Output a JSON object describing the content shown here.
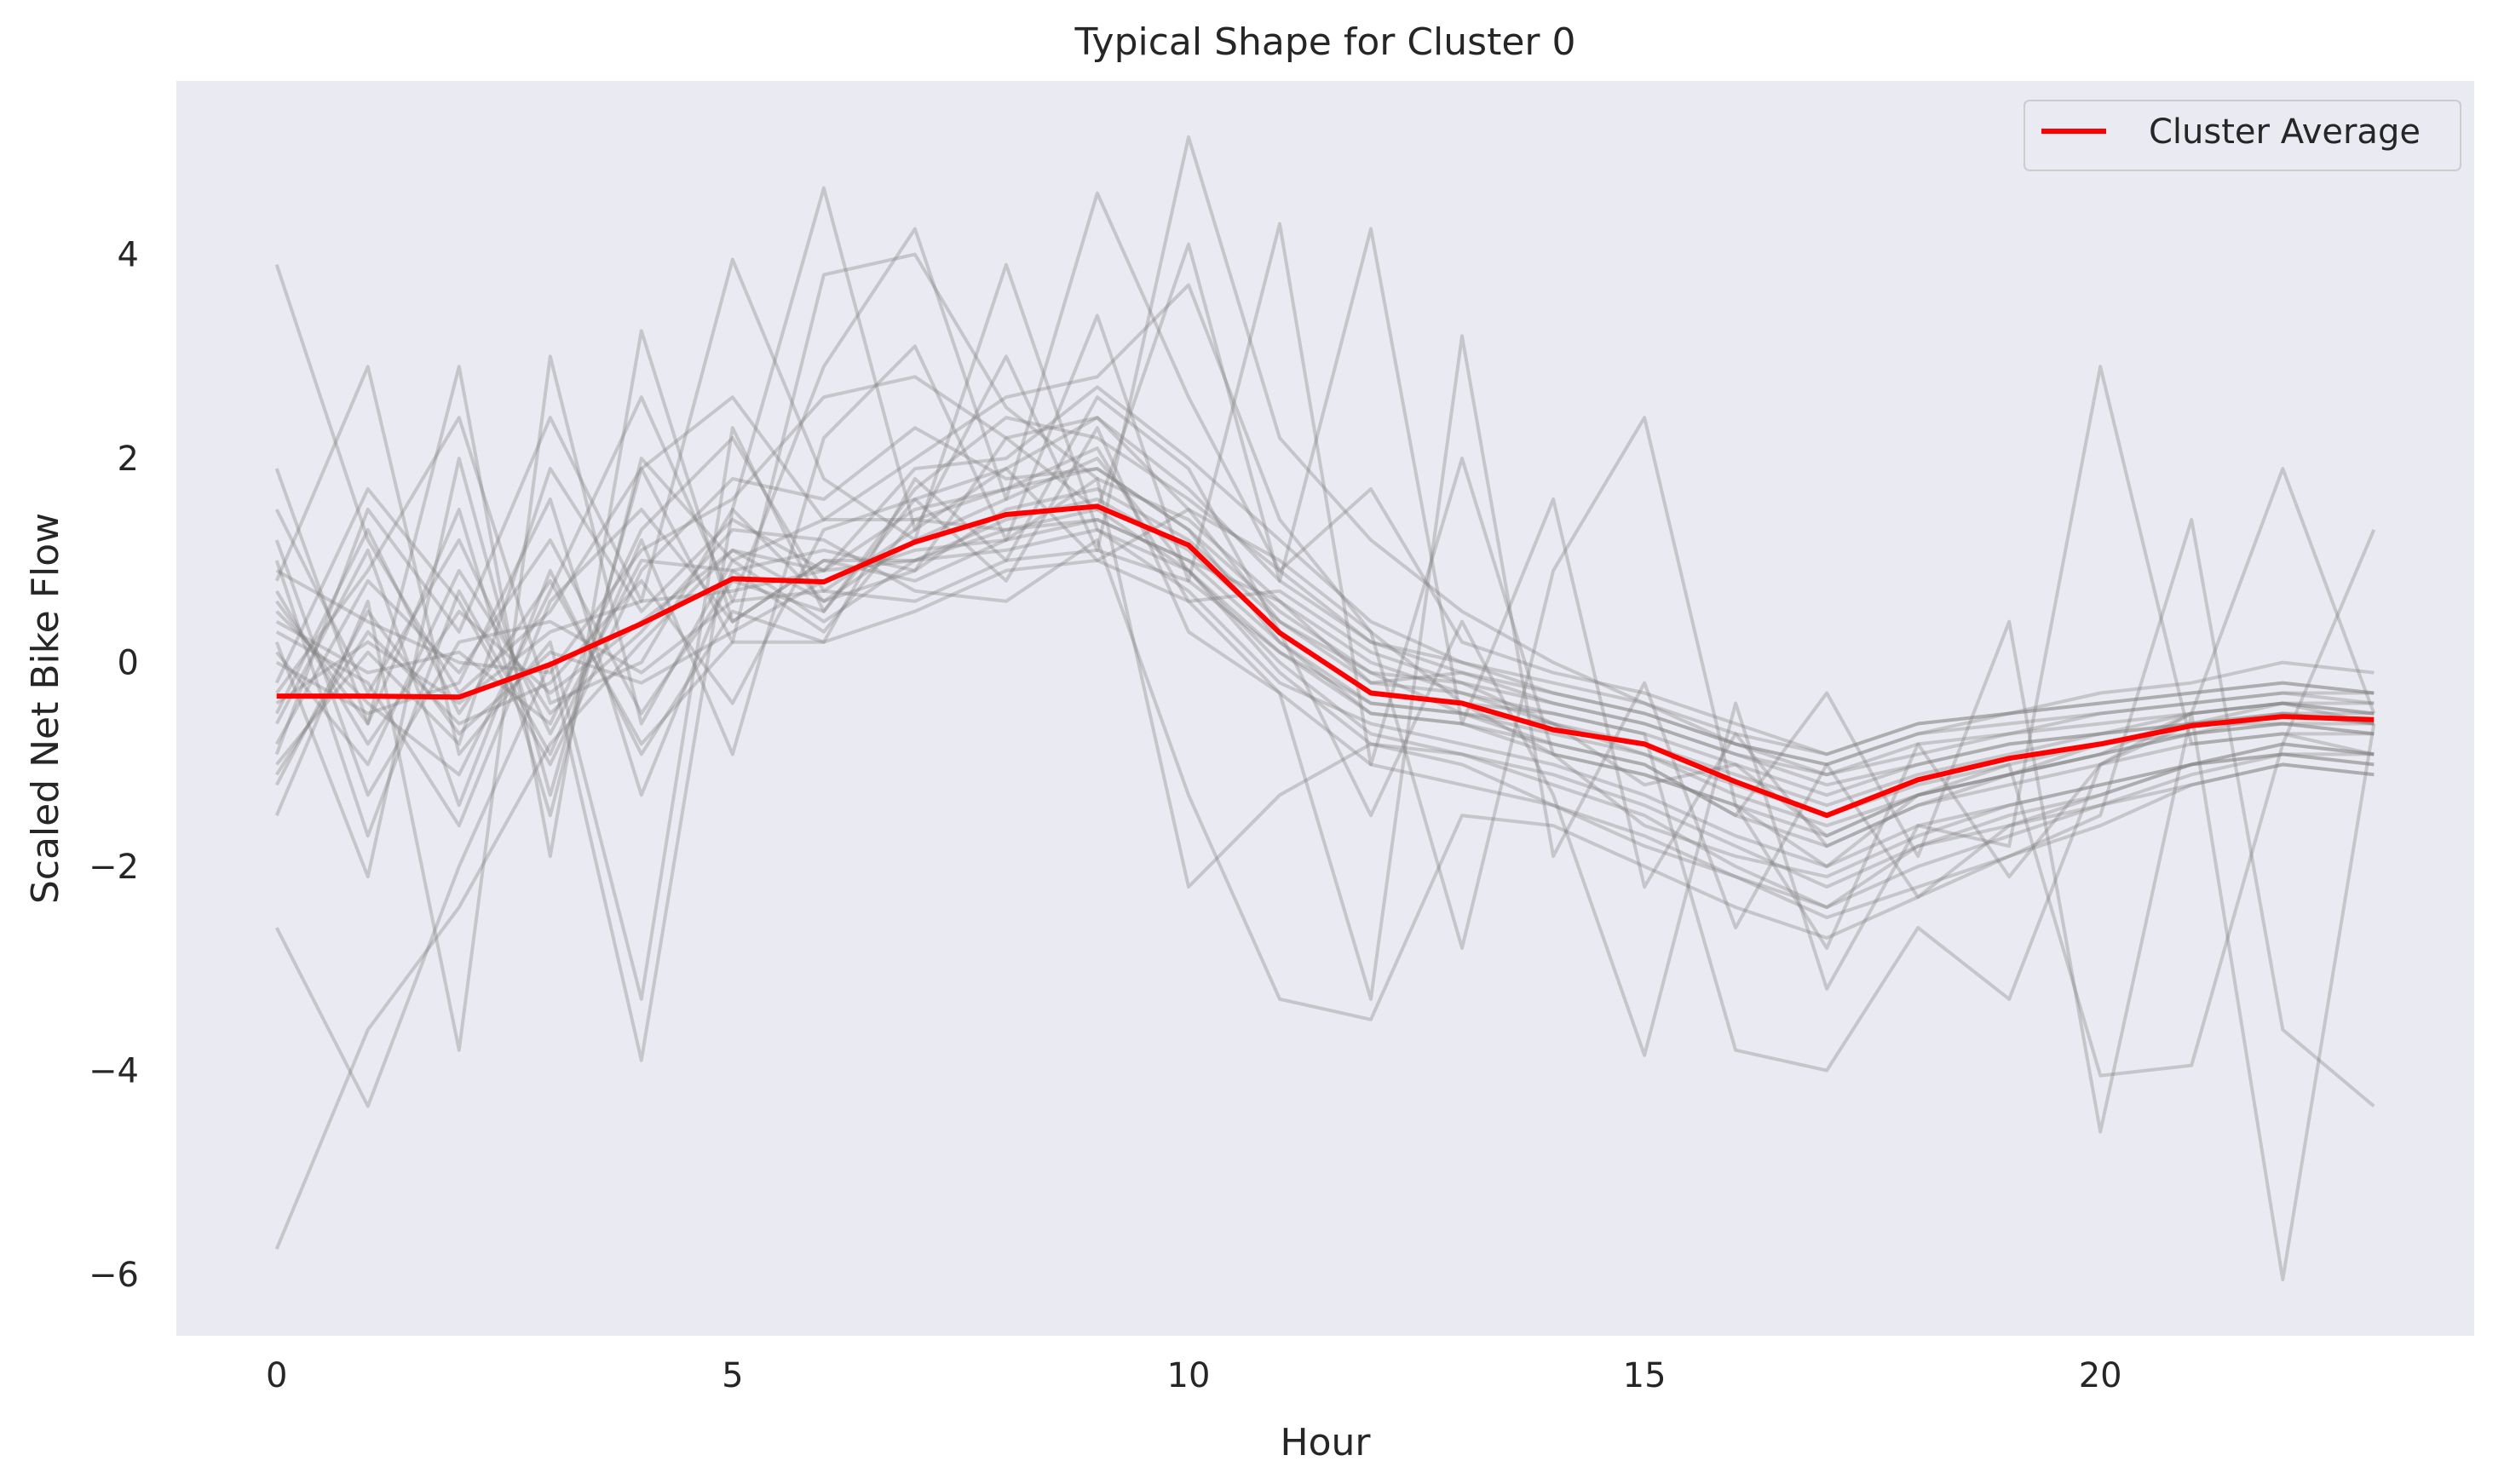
{
  "chart_data": {
    "type": "line",
    "title": "Typical Shape for Cluster 0",
    "xlabel": "Hour",
    "ylabel": "Scaled Net Bike Flow",
    "xlim": [
      -1.1,
      24.1
    ],
    "ylim": [
      -6.6,
      5.7
    ],
    "xticks": [
      0,
      5,
      10,
      15,
      20
    ],
    "yticks": [
      -6,
      -4,
      -2,
      0,
      2,
      4
    ],
    "ytick_labels": [
      "−6",
      "−4",
      "−2",
      "0",
      "2",
      "4"
    ],
    "grid": false,
    "legend": {
      "position": "top-right",
      "entries": [
        "Cluster Average"
      ]
    },
    "colors": {
      "background": "#eaeaf2",
      "average": "#ff0000",
      "members": "#808080"
    },
    "x": [
      0,
      1,
      2,
      3,
      4,
      5,
      6,
      7,
      8,
      9,
      10,
      11,
      12,
      13,
      14,
      15,
      16,
      17,
      18,
      19,
      20,
      21,
      22,
      23
    ],
    "series": [
      {
        "name": "Cluster Average",
        "values": [
          -0.33,
          -0.33,
          -0.34,
          -0.02,
          0.38,
          0.82,
          0.79,
          1.18,
          1.45,
          1.53,
          1.15,
          0.29,
          -0.3,
          -0.4,
          -0.66,
          -0.8,
          -1.17,
          -1.5,
          -1.15,
          -0.94,
          -0.8,
          -0.62,
          -0.53,
          -0.56
        ]
      }
    ],
    "member_series": [
      [
        3.9,
        1.2,
        -0.3,
        0.5,
        1.9,
        2.6,
        1.4,
        2.0,
        2.6,
        2.8,
        3.7,
        1.4,
        0.3,
        -0.4,
        -0.9,
        -1.1,
        -1.4,
        -2.0,
        -1.3,
        -1.1,
        -0.8,
        -0.6,
        -0.4,
        -0.6
      ],
      [
        -5.75,
        -3.6,
        -2.4,
        -0.8,
        0.2,
        1.1,
        0.9,
        1.5,
        1.7,
        1.9,
        1.3,
        0.2,
        -0.5,
        -0.6,
        -0.8,
        -1.0,
        -1.5,
        -1.8,
        -1.4,
        -1.1,
        -0.9,
        -0.5,
        -0.4,
        -0.5
      ],
      [
        -2.6,
        -4.35,
        -2.0,
        0.0,
        -3.9,
        1.5,
        0.6,
        1.2,
        1.6,
        2.0,
        0.9,
        -0.1,
        -0.8,
        -0.9,
        -1.2,
        -1.5,
        -2.0,
        -2.4,
        -1.8,
        -1.6,
        -1.3,
        -1.0,
        -0.8,
        -0.9
      ],
      [
        1.9,
        -0.6,
        2.9,
        -1.9,
        3.25,
        0.4,
        1.0,
        0.8,
        1.2,
        1.4,
        1.0,
        0.6,
        -0.2,
        -0.1,
        -0.3,
        -0.5,
        -0.8,
        -1.0,
        -0.7,
        -0.6,
        -0.5,
        -0.4,
        -0.3,
        -0.3
      ],
      [
        0.8,
        2.9,
        -0.9,
        0.2,
        -3.3,
        2.3,
        0.5,
        1.6,
        1.9,
        2.4,
        1.5,
        0.4,
        -0.1,
        -0.5,
        -0.6,
        -0.8,
        -1.1,
        -1.4,
        -1.1,
        -0.9,
        -0.7,
        -0.6,
        -0.6,
        -0.7
      ],
      [
        -1.5,
        0.6,
        -3.8,
        3.0,
        -0.6,
        1.0,
        0.4,
        1.0,
        1.4,
        1.6,
        1.1,
        0.3,
        -0.3,
        -0.4,
        -0.5,
        -0.7,
        -1.0,
        -1.3,
        -1.0,
        -0.8,
        -0.7,
        -0.5,
        -0.4,
        -0.5
      ],
      [
        0.2,
        -2.1,
        2.0,
        -1.3,
        1.9,
        0.2,
        3.8,
        4.0,
        2.5,
        1.8,
        1.4,
        0.6,
        0.0,
        -0.3,
        -0.6,
        -0.9,
        -1.2,
        -1.5,
        -1.2,
        -1.0,
        -0.8,
        -0.7,
        -0.6,
        -0.6
      ],
      [
        -0.9,
        1.5,
        0.3,
        2.4,
        0.6,
        3.95,
        1.8,
        1.2,
        3.9,
        1.3,
        0.9,
        0.1,
        -0.4,
        -0.5,
        -0.7,
        -0.9,
        -1.3,
        -1.6,
        -1.3,
        -1.1,
        -0.9,
        -0.7,
        -0.5,
        -0.6
      ],
      [
        0.5,
        -0.4,
        -1.1,
        0.7,
        2.6,
        0.6,
        2.9,
        4.25,
        1.6,
        4.6,
        2.6,
        0.9,
        0.2,
        -0.1,
        -0.4,
        -0.6,
        -0.9,
        -1.2,
        -1.0,
        -0.8,
        -0.7,
        -0.6,
        -0.5,
        -0.5
      ],
      [
        -0.3,
        0.9,
        2.4,
        -0.4,
        0.0,
        1.5,
        4.65,
        1.3,
        3.0,
        1.1,
        5.15,
        2.2,
        1.2,
        0.5,
        0.0,
        -0.4,
        -0.8,
        -1.1,
        -0.9,
        -0.7,
        -0.6,
        -0.5,
        -0.4,
        -0.4
      ],
      [
        1.0,
        -1.7,
        0.7,
        -0.9,
        1.2,
        -0.9,
        2.2,
        3.1,
        1.2,
        3.4,
        0.8,
        4.3,
        -1.0,
        2.0,
        -0.9,
        -1.6,
        -1.9,
        -2.1,
        -1.7,
        -1.4,
        -1.2,
        -1.0,
        -0.8,
        -0.9
      ],
      [
        0.0,
        -0.5,
        -0.2,
        1.6,
        -1.3,
        0.9,
        1.1,
        0.9,
        2.2,
        1.5,
        4.1,
        0.8,
        4.25,
        -0.6,
        1.6,
        -2.2,
        -0.7,
        -1.8,
        -1.4,
        -1.2,
        -1.0,
        -0.8,
        -0.7,
        -0.7
      ],
      [
        -1.1,
        0.3,
        -0.6,
        -0.2,
        0.8,
        -0.4,
        1.3,
        1.6,
        0.8,
        2.3,
        0.3,
        -0.3,
        -3.3,
        3.2,
        -1.9,
        -0.2,
        -2.6,
        -1.0,
        -2.3,
        -1.6,
        -1.4,
        -1.1,
        -0.9,
        -1.0
      ],
      [
        0.4,
        -0.1,
        0.1,
        -0.6,
        1.3,
        2.2,
        0.7,
        1.3,
        1.9,
        1.0,
        1.5,
        1.0,
        0.3,
        -2.8,
        0.9,
        2.4,
        -1.4,
        -2.8,
        -0.8,
        -2.1,
        -1.0,
        -0.6,
        -0.5,
        -0.6
      ],
      [
        -0.6,
        1.1,
        -1.4,
        0.9,
        -0.9,
        0.5,
        0.2,
        1.8,
        1.0,
        2.6,
        1.9,
        0.3,
        -1.5,
        0.4,
        -1.3,
        -3.85,
        -0.4,
        -3.2,
        -1.6,
        -1.8,
        2.9,
        -0.8,
        -0.7,
        -0.9
      ],
      [
        0.7,
        -0.8,
        0.5,
        -0.3,
        0.4,
        1.1,
        0.6,
        0.9,
        1.5,
        1.7,
        1.2,
        0.4,
        -0.2,
        -0.3,
        -0.5,
        -0.7,
        -3.8,
        -4.0,
        -2.6,
        -3.3,
        -1.0,
        -0.5,
        1.9,
        -0.5
      ],
      [
        -0.4,
        0.2,
        -0.4,
        0.3,
        0.6,
        0.7,
        0.9,
        1.0,
        1.3,
        1.4,
        1.0,
        0.2,
        -0.4,
        -0.5,
        -0.8,
        -1.0,
        -1.5,
        -0.3,
        -1.9,
        0.4,
        -4.6,
        -0.5,
        -6.05,
        -0.6
      ],
      [
        1.5,
        -0.3,
        1.2,
        -0.7,
        1.0,
        0.9,
        0.3,
        1.4,
        1.7,
        2.1,
        0.6,
        0.7,
        0.1,
        -0.2,
        -0.6,
        -1.2,
        -1.0,
        -1.7,
        -1.3,
        -1.0,
        -4.05,
        -3.95,
        -0.8,
        1.3
      ],
      [
        -1.2,
        0.5,
        -0.7,
        0.1,
        -0.2,
        0.3,
        0.8,
        1.1,
        1.2,
        1.8,
        -2.2,
        -1.3,
        -0.8,
        -1.0,
        -1.4,
        -1.8,
        -2.1,
        -2.5,
        -2.2,
        -1.9,
        -1.5,
        1.4,
        -3.6,
        -4.35
      ],
      [
        0.1,
        -1.0,
        0.9,
        -0.5,
        0.3,
        1.3,
        1.2,
        0.7,
        0.6,
        1.2,
        -1.3,
        -3.3,
        -3.5,
        -1.5,
        -1.6,
        -2.0,
        -2.4,
        -2.7,
        -2.3,
        -1.9,
        -1.6,
        -1.2,
        -1.0,
        -1.1
      ],
      [
        -0.8,
        0.8,
        -0.1,
        1.2,
        -0.5,
        0.8,
        0.5,
        1.7,
        2.4,
        2.2,
        1.6,
        0.9,
        1.7,
        0.2,
        -0.1,
        -0.3,
        -0.6,
        -0.9,
        -0.6,
        -0.5,
        -0.3,
        -0.2,
        0.0,
        -0.1
      ],
      [
        0.3,
        -0.2,
        -1.6,
        0.6,
        1.5,
        0.4,
        1.0,
        1.0,
        1.1,
        1.3,
        0.7,
        -0.2,
        -0.6,
        -0.8,
        -1.0,
        -1.3,
        -1.7,
        -2.0,
        -1.6,
        -1.4,
        -1.2,
        -1.0,
        -0.9,
        -0.9
      ],
      [
        -0.2,
        1.7,
        0.6,
        -1.0,
        0.9,
        1.8,
        1.6,
        2.3,
        1.8,
        1.9,
        1.3,
        0.5,
        -0.1,
        -0.2,
        -0.4,
        -0.6,
        -0.9,
        -1.1,
        -0.8,
        -0.7,
        -0.5,
        -0.4,
        -0.3,
        -0.4
      ],
      [
        1.2,
        -1.3,
        0.2,
        0.4,
        -0.1,
        0.6,
        0.7,
        0.6,
        1.0,
        1.1,
        0.8,
        0.1,
        -0.5,
        -0.6,
        -0.9,
        -1.1,
        -1.4,
        -1.7,
        -1.3,
        -1.1,
        -0.9,
        -0.7,
        -0.6,
        -0.7
      ],
      [
        -1.0,
        0.1,
        -0.8,
        1.9,
        0.5,
        1.4,
        0.9,
        1.9,
        2.0,
        2.7,
        2.0,
        1.2,
        0.4,
        0.0,
        -0.3,
        -0.5,
        -0.8,
        -1.0,
        -0.7,
        -0.5,
        -0.4,
        -0.3,
        -0.2,
        -0.3
      ],
      [
        0.6,
        -0.6,
        1.5,
        -1.5,
        2.0,
        1.0,
        1.4,
        1.4,
        1.3,
        1.5,
        0.9,
        0.0,
        -0.7,
        -0.9,
        -1.1,
        -1.4,
        -1.8,
        -2.2,
        -1.8,
        -1.5,
        -1.3,
        -1.0,
        -0.9,
        -1.0
      ],
      [
        -0.5,
        1.3,
        -0.5,
        0.8,
        -0.8,
        0.2,
        0.2,
        0.5,
        0.9,
        1.0,
        0.6,
        -0.3,
        -1.0,
        -1.2,
        -1.4,
        -1.7,
        -2.1,
        -2.4,
        -2.0,
        -1.7,
        -1.4,
        -1.2,
        -1.0,
        -1.1
      ],
      [
        0.9,
        0.4,
        0.0,
        -0.1,
        1.1,
        1.6,
        2.6,
        2.8,
        2.2,
        2.4,
        1.7,
        0.8,
        0.2,
        0.0,
        -0.2,
        -0.4,
        -0.7,
        -0.9,
        -0.6,
        -0.5,
        -0.4,
        -0.3,
        -0.2,
        -0.3
      ]
    ]
  }
}
